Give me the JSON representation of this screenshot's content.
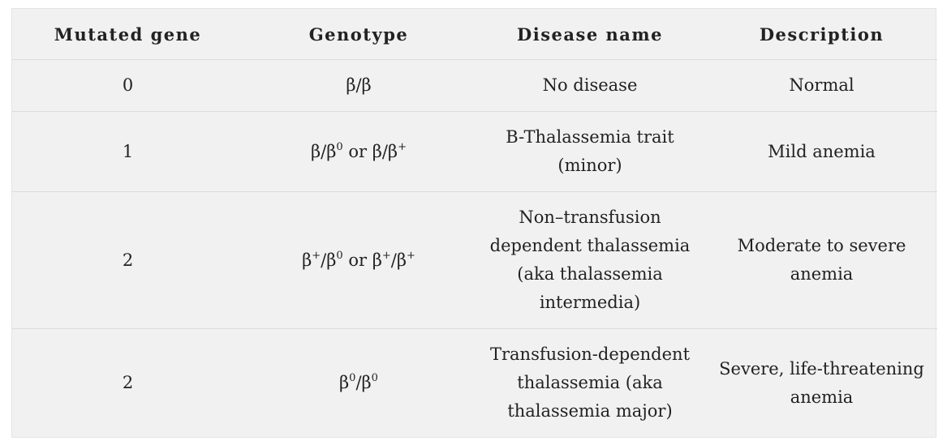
{
  "table": {
    "headers": {
      "mutated_gene": "Mutated gene",
      "genotype": "Genotype",
      "disease_name": "Disease name",
      "description": "Description"
    },
    "rows": [
      {
        "mutated_gene": "0",
        "genotype": {
          "a": "β/β"
        },
        "disease_name": "No disease",
        "description": "Normal"
      },
      {
        "mutated_gene": "1",
        "genotype": {
          "a": "β/β",
          "a_sup": "0",
          "b": " or β/β",
          "b_sup": "+"
        },
        "disease_name": "B-Thalassemia trait (minor)",
        "description": "Mild anemia"
      },
      {
        "mutated_gene": "2",
        "genotype": {
          "a": "β",
          "a_sup": "+",
          "b": "/β",
          "b_sup": "0",
          "c": " or β",
          "c_sup": "+",
          "d": "/β",
          "d_sup": "+"
        },
        "disease_name": "Non–transfusion dependent thalassemia (aka thalassemia intermedia)",
        "description": "Moderate to severe anemia"
      },
      {
        "mutated_gene": "2",
        "genotype": {
          "a": "β",
          "a_sup": "0",
          "b": "/β",
          "b_sup": "0"
        },
        "disease_name": "Transfusion-dependent thalassemia (aka thalassemia major)",
        "description": "Severe, life-threatening anemia"
      }
    ]
  }
}
